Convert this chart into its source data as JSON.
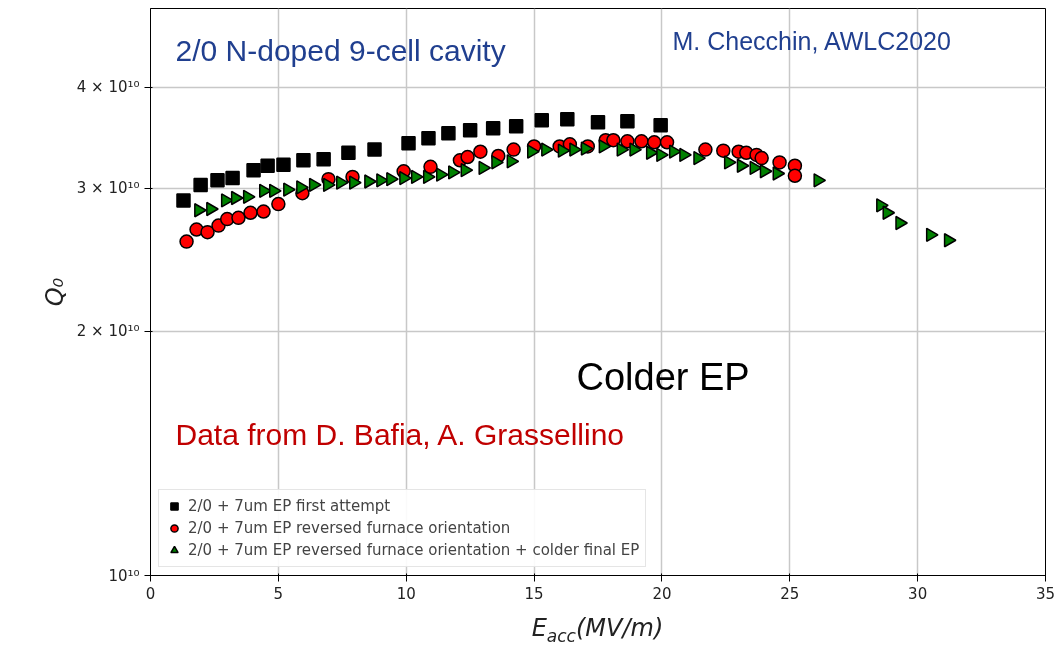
{
  "chart_data": {
    "type": "scatter",
    "title": "2/0 N-doped 9-cell cavity",
    "xlabel": "E$_{acc}$(MV/m)",
    "ylabel": "Q₀",
    "annotations": [
      "M. Checchin, AWLC2020",
      "Colder EP",
      "Data from D. Bafia, A. Grassellino"
    ],
    "xlim": [
      0,
      35
    ],
    "xticks": [
      0,
      5,
      10,
      15,
      20,
      25,
      30,
      35
    ],
    "ylim": [
      10000000000.0,
      50000000000.0
    ],
    "yticks": [
      {
        "value": 10000000000.0,
        "label": "10¹⁰"
      },
      {
        "value": 20000000000.0,
        "label": "2 × 10¹⁰"
      },
      {
        "value": 30000000000.0,
        "label": "3 × 10¹⁰"
      },
      {
        "value": 40000000000.0,
        "label": "4 × 10¹⁰"
      }
    ],
    "log": "y",
    "grid": true,
    "legend": "bottom left",
    "series": [
      {
        "name": "2/0 + 7um EP first attempt",
        "color": "#000000",
        "marker": "square",
        "x": [
          1.29,
          1.96,
          2.62,
          3.21,
          4.03,
          4.58,
          5.2,
          5.98,
          6.77,
          7.74,
          8.76,
          10.09,
          10.87,
          11.65,
          12.5,
          13.4,
          14.3,
          15.3,
          16.3,
          17.5,
          18.65,
          19.95
        ],
        "values": [
          29000000000.0,
          30300000000.0,
          30700000000.0,
          30900000000.0,
          31600000000.0,
          32000000000.0,
          32100000000.0,
          32500000000.0,
          32600000000.0,
          33200000000.0,
          33500000000.0,
          34100000000.0,
          34600000000.0,
          35100000000.0,
          35400000000.0,
          35600000000.0,
          35800000000.0,
          36400000000.0,
          36500000000.0,
          36200000000.0,
          36300000000.0,
          35900000000.0
        ]
      },
      {
        "name": "2/0 + 7um EP reversed furnace orientation",
        "color": "#ff0000",
        "marker": "circle",
        "x": [
          1.41,
          1.8,
          2.23,
          2.66,
          3.0,
          3.44,
          3.91,
          4.42,
          5.0,
          5.94,
          6.96,
          7.9,
          9.0,
          9.9,
          10.95,
          12.1,
          12.4,
          12.9,
          13.6,
          14.2,
          15.0,
          16.0,
          16.4,
          17.1,
          17.8,
          18.1,
          18.65,
          19.2,
          19.7,
          20.2,
          20.7,
          21.2,
          21.7,
          22.4,
          23.0,
          23.3,
          23.7,
          23.9,
          24.6,
          25.0,
          25.2,
          25.2
        ],
        "values": [
          25800000000.0,
          26700000000.0,
          26500000000.0,
          27000000000.0,
          27500000000.0,
          27600000000.0,
          28000000000.0,
          28100000000.0,
          28700000000.0,
          29600000000.0,
          30800000000.0,
          31000000000.0,
          null,
          31500000000.0,
          31900000000.0,
          32500000000.0,
          32800000000.0,
          33300000000.0,
          32900000000.0,
          33500000000.0,
          33800000000.0,
          33800000000.0,
          34000000000.0,
          33800000000.0,
          34400000000.0,
          34400000000.0,
          34300000000.0,
          34300000000.0,
          34200000000.0,
          34200000000.0,
          null,
          null,
          33500000000.0,
          33400000000.0,
          33300000000.0,
          33200000000.0,
          33000000000.0,
          32700000000.0,
          32300000000.0,
          null,
          32000000000.0,
          31100000000.0
        ]
      },
      {
        "name": "2/0 + 7um EP reversed furnace orientation + colder final EP",
        "color": "#008000",
        "marker": "triangle",
        "x": [
          1.88,
          2.35,
          2.93,
          3.32,
          3.79,
          4.42,
          4.81,
          5.36,
          5.87,
          6.37,
          6.92,
          7.43,
          7.94,
          8.53,
          9.0,
          9.39,
          9.9,
          10.36,
          10.83,
          11.34,
          11.81,
          12.3,
          13.0,
          13.5,
          14.1,
          14.9,
          15.45,
          16.1,
          16.55,
          17.0,
          17.7,
          18.4,
          18.9,
          19.55,
          19.95,
          20.45,
          20.85,
          21.4,
          22.6,
          23.1,
          23.6,
          24.0,
          24.5,
          26.1,
          28.55,
          28.8,
          29.3,
          30.5,
          31.2
        ],
        "values": [
          28200000000.0,
          28300000000.0,
          29000000000.0,
          29200000000.0,
          29300000000.0,
          29800000000.0,
          29800000000.0,
          29900000000.0,
          30100000000.0,
          30300000000.0,
          30300000000.0,
          30500000000.0,
          30500000000.0,
          30600000000.0,
          30700000000.0,
          30800000000.0,
          30900000000.0,
          31000000000.0,
          31000000000.0,
          31200000000.0,
          31400000000.0,
          31600000000.0,
          31800000000.0,
          32300000000.0,
          32400000000.0,
          33300000000.0,
          33500000000.0,
          33400000000.0,
          33500000000.0,
          33600000000.0,
          33800000000.0,
          33500000000.0,
          33500000000.0,
          33200000000.0,
          33000000000.0,
          33300000000.0,
          33000000000.0,
          32700000000.0,
          32300000000.0,
          32000000000.0,
          31800000000.0,
          31500000000.0,
          31300000000.0,
          30700000000.0,
          28600000000.0,
          28000000000.0,
          27200000000.0,
          26300000000.0,
          25900000000.0
        ]
      }
    ]
  }
}
